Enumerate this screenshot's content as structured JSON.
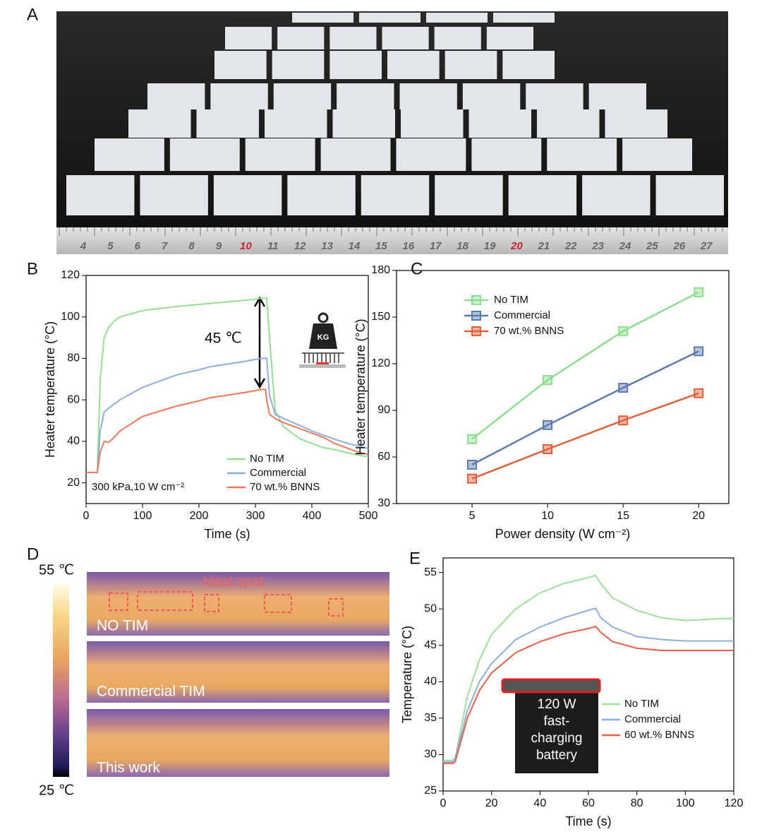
{
  "panel_labels": [
    "A",
    "B",
    "C",
    "D",
    "E"
  ],
  "photo": {
    "ruler_labels": [
      "4",
      "5",
      "6",
      "7",
      "8",
      "9",
      "10",
      "11",
      "12",
      "13",
      "14",
      "15",
      "16",
      "17",
      "18",
      "19",
      "20",
      "21",
      "22",
      "23",
      "24",
      "25",
      "26",
      "27"
    ],
    "ruler_label_colors": [
      "#666",
      "#666",
      "#666",
      "#666",
      "#666",
      "#666",
      "#c0262e",
      "#666",
      "#666",
      "#666",
      "#666",
      "#666",
      "#666",
      "#666",
      "#666",
      "#666",
      "#c0262e",
      "#666",
      "#666",
      "#666",
      "#666",
      "#666",
      "#666",
      "#666"
    ]
  },
  "thermal": {
    "scale_max": "55 ℃",
    "scale_min": "25 ℃",
    "annotation": "Heat spot",
    "captions": [
      "NO TIM",
      "Commercial TIM",
      "This work"
    ]
  },
  "chart_data": [
    {
      "type": "line",
      "xlabel": "Time (s)",
      "ylabel": "Heater temperature (°C)",
      "xlim": [
        0,
        500
      ],
      "xticks": [
        0,
        100,
        200,
        300,
        400,
        500
      ],
      "ylim": [
        10,
        120
      ],
      "yticks": [
        20,
        40,
        60,
        80,
        100,
        120
      ],
      "legend": "lower right",
      "x": [
        0,
        20,
        25,
        32,
        40,
        50,
        60,
        100,
        160,
        200,
        220,
        280,
        300,
        310,
        318,
        320,
        325,
        335,
        350,
        380,
        400,
        420,
        440,
        470,
        480,
        500
      ],
      "series": [
        {
          "name": "No TIM",
          "color": "#93e093",
          "values": [
            25,
            25,
            70,
            90,
            95,
            98,
            100,
            103,
            105,
            106,
            106.5,
            108,
            108.5,
            109,
            109,
            109,
            90,
            55,
            47,
            41,
            39,
            37,
            36,
            34,
            33.5,
            32.5
          ]
        },
        {
          "name": "Commercial",
          "color": "#8eaee0",
          "values": [
            25,
            25,
            45,
            54,
            56,
            58,
            60,
            66,
            72,
            74.5,
            76,
            78.5,
            79.5,
            80,
            80,
            80,
            62,
            53,
            51,
            47.5,
            45,
            43,
            41,
            38.5,
            38,
            36.5
          ]
        },
        {
          "name": "70 wt.% BNNS",
          "color": "#f0785a",
          "values": [
            25,
            25,
            35,
            40,
            39.5,
            42,
            45,
            52,
            57,
            59.5,
            61,
            63.5,
            64.5,
            65,
            65,
            60,
            53,
            51,
            49,
            46,
            44,
            42,
            39,
            36,
            35,
            33.5
          ]
        }
      ],
      "annotations": [
        "45 ℃",
        "300 kPa,10 W cm⁻²"
      ]
    },
    {
      "type": "line",
      "markers": "square",
      "xlabel": "Power density (W cm⁻²)",
      "ylabel": "Heater temperature (°C)",
      "xlim": [
        0,
        22
      ],
      "xticks": [
        5,
        10,
        15,
        20
      ],
      "ylim": [
        30,
        180
      ],
      "yticks": [
        30,
        60,
        90,
        120,
        150,
        180
      ],
      "legend": "upper left",
      "x": [
        5,
        10,
        15,
        20
      ],
      "series": [
        {
          "name": "No TIM",
          "color": "#8edc8e",
          "values": [
            71.5,
            109.5,
            141,
            166
          ]
        },
        {
          "name": "Commercial",
          "color": "#5b7bb0",
          "values": [
            55,
            80.5,
            104.5,
            128
          ]
        },
        {
          "name": "70 wt.% BNNS",
          "color": "#e0603a",
          "values": [
            46,
            65,
            83.5,
            101
          ]
        }
      ]
    },
    {
      "type": "line",
      "xlabel": "Time (s)",
      "ylabel": "Temperature (°C)",
      "xlim": [
        0,
        120
      ],
      "xticks": [
        0,
        20,
        40,
        60,
        80,
        100,
        120
      ],
      "ylim": [
        25,
        57
      ],
      "yticks": [
        25,
        30,
        35,
        40,
        45,
        50,
        55
      ],
      "legend": "lower right",
      "x": [
        0,
        4,
        5,
        10,
        15,
        20,
        30,
        40,
        50,
        60,
        63,
        65,
        70,
        80,
        90,
        100,
        110,
        120
      ],
      "series": [
        {
          "name": "No TIM",
          "color": "#9ae29a",
          "values": [
            29.2,
            29.2,
            29.5,
            38,
            43,
            46.5,
            50,
            52.2,
            53.5,
            54.3,
            54.6,
            53.5,
            51.5,
            49.8,
            48.8,
            48.4,
            48.6,
            48.7
          ]
        },
        {
          "name": "Commercial",
          "color": "#8eaee0",
          "values": [
            29,
            29,
            29.5,
            36,
            40,
            42.5,
            45.8,
            47.5,
            48.8,
            49.8,
            50.1,
            48.8,
            47.5,
            46.2,
            45.8,
            45.6,
            45.6,
            45.6
          ]
        },
        {
          "name": "60 wt.% BNNS",
          "color": "#e8604a",
          "values": [
            28.8,
            28.8,
            29,
            35,
            38.8,
            41.2,
            44,
            45.5,
            46.6,
            47.3,
            47.6,
            46.8,
            45.5,
            44.6,
            44.3,
            44.3,
            44.3,
            44.3
          ]
        }
      ],
      "annotations": [
        "120 W",
        "fast-",
        "charging",
        "battery"
      ]
    }
  ]
}
